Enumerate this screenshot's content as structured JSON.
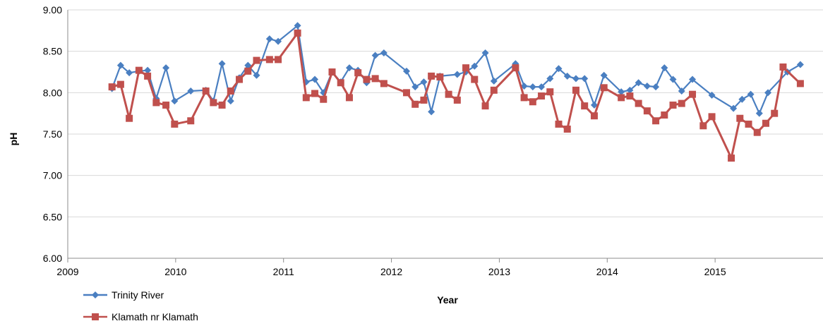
{
  "chart_data": {
    "type": "line",
    "xlabel": "Year",
    "ylabel": "pH",
    "xlim": [
      2009,
      2016
    ],
    "ylim": [
      6.0,
      9.0
    ],
    "x_ticks": [
      "2009",
      "2010",
      "2011",
      "2012",
      "2013",
      "2014",
      "2015"
    ],
    "y_ticks": [
      "6.00",
      "6.50",
      "7.00",
      "7.50",
      "8.00",
      "8.50",
      "9.00"
    ],
    "grid": {
      "horizontal": true,
      "vertical": false
    },
    "legend_position": "bottom-left",
    "series": [
      {
        "name": "Trinity River",
        "color": "#4a7fc1",
        "marker": "diamond",
        "points": [
          [
            2009.41,
            8.05
          ],
          [
            2009.49,
            8.33
          ],
          [
            2009.57,
            8.24
          ],
          [
            2009.66,
            8.26
          ],
          [
            2009.74,
            8.27
          ],
          [
            2009.82,
            7.93
          ],
          [
            2009.91,
            8.3
          ],
          [
            2009.99,
            7.9
          ],
          [
            2010.14,
            8.02
          ],
          [
            2010.28,
            8.03
          ],
          [
            2010.35,
            7.9
          ],
          [
            2010.43,
            8.35
          ],
          [
            2010.51,
            7.9
          ],
          [
            2010.59,
            8.18
          ],
          [
            2010.67,
            8.33
          ],
          [
            2010.75,
            8.21
          ],
          [
            2010.87,
            8.65
          ],
          [
            2010.95,
            8.62
          ],
          [
            2011.13,
            8.81
          ],
          [
            2011.21,
            8.13
          ],
          [
            2011.29,
            8.16
          ],
          [
            2011.37,
            8.0
          ],
          [
            2011.45,
            8.25
          ],
          [
            2011.53,
            8.13
          ],
          [
            2011.61,
            8.3
          ],
          [
            2011.69,
            8.27
          ],
          [
            2011.77,
            8.12
          ],
          [
            2011.85,
            8.45
          ],
          [
            2011.93,
            8.48
          ],
          [
            2012.14,
            8.26
          ],
          [
            2012.22,
            8.07
          ],
          [
            2012.3,
            8.13
          ],
          [
            2012.37,
            7.77
          ],
          [
            2012.45,
            8.2
          ],
          [
            2012.61,
            8.22
          ],
          [
            2012.69,
            8.25
          ],
          [
            2012.77,
            8.32
          ],
          [
            2012.87,
            8.48
          ],
          [
            2012.95,
            8.14
          ],
          [
            2013.15,
            8.35
          ],
          [
            2013.23,
            8.08
          ],
          [
            2013.31,
            8.07
          ],
          [
            2013.39,
            8.07
          ],
          [
            2013.47,
            8.17
          ],
          [
            2013.55,
            8.29
          ],
          [
            2013.63,
            8.2
          ],
          [
            2013.71,
            8.17
          ],
          [
            2013.79,
            8.17
          ],
          [
            2013.88,
            7.85
          ],
          [
            2013.97,
            8.21
          ],
          [
            2014.13,
            8.01
          ],
          [
            2014.21,
            8.03
          ],
          [
            2014.29,
            8.12
          ],
          [
            2014.37,
            8.08
          ],
          [
            2014.45,
            8.07
          ],
          [
            2014.53,
            8.3
          ],
          [
            2014.61,
            8.16
          ],
          [
            2014.69,
            8.02
          ],
          [
            2014.79,
            8.16
          ],
          [
            2014.97,
            7.97
          ],
          [
            2015.17,
            7.81
          ],
          [
            2015.25,
            7.92
          ],
          [
            2015.33,
            7.98
          ],
          [
            2015.41,
            7.75
          ],
          [
            2015.49,
            8.0
          ],
          [
            2015.67,
            8.25
          ],
          [
            2015.79,
            8.34
          ]
        ]
      },
      {
        "name": "Klamath nr Klamath",
        "color": "#c0504d",
        "marker": "square",
        "points": [
          [
            2009.41,
            8.07
          ],
          [
            2009.49,
            8.1
          ],
          [
            2009.57,
            7.69
          ],
          [
            2009.66,
            8.27
          ],
          [
            2009.74,
            8.2
          ],
          [
            2009.82,
            7.88
          ],
          [
            2009.91,
            7.85
          ],
          [
            2009.99,
            7.62
          ],
          [
            2010.14,
            7.66
          ],
          [
            2010.28,
            8.02
          ],
          [
            2010.35,
            7.88
          ],
          [
            2010.43,
            7.85
          ],
          [
            2010.51,
            8.02
          ],
          [
            2010.59,
            8.16
          ],
          [
            2010.67,
            8.26
          ],
          [
            2010.75,
            8.39
          ],
          [
            2010.87,
            8.4
          ],
          [
            2010.95,
            8.4
          ],
          [
            2011.13,
            8.72
          ],
          [
            2011.21,
            7.94
          ],
          [
            2011.29,
            7.99
          ],
          [
            2011.37,
            7.92
          ],
          [
            2011.45,
            8.25
          ],
          [
            2011.53,
            8.12
          ],
          [
            2011.61,
            7.94
          ],
          [
            2011.69,
            8.24
          ],
          [
            2011.77,
            8.16
          ],
          [
            2011.85,
            8.17
          ],
          [
            2011.93,
            8.11
          ],
          [
            2012.14,
            8.0
          ],
          [
            2012.22,
            7.86
          ],
          [
            2012.3,
            7.91
          ],
          [
            2012.37,
            8.2
          ],
          [
            2012.45,
            8.19
          ],
          [
            2012.53,
            7.98
          ],
          [
            2012.61,
            7.91
          ],
          [
            2012.69,
            8.3
          ],
          [
            2012.77,
            8.16
          ],
          [
            2012.87,
            7.84
          ],
          [
            2012.95,
            8.03
          ],
          [
            2013.15,
            8.3
          ],
          [
            2013.23,
            7.94
          ],
          [
            2013.31,
            7.89
          ],
          [
            2013.39,
            7.96
          ],
          [
            2013.47,
            8.01
          ],
          [
            2013.55,
            7.62
          ],
          [
            2013.63,
            7.56
          ],
          [
            2013.71,
            8.03
          ],
          [
            2013.79,
            7.84
          ],
          [
            2013.88,
            7.72
          ],
          [
            2013.97,
            8.06
          ],
          [
            2014.13,
            7.94
          ],
          [
            2014.21,
            7.96
          ],
          [
            2014.29,
            7.87
          ],
          [
            2014.37,
            7.78
          ],
          [
            2014.45,
            7.66
          ],
          [
            2014.53,
            7.73
          ],
          [
            2014.61,
            7.85
          ],
          [
            2014.69,
            7.87
          ],
          [
            2014.79,
            7.98
          ],
          [
            2014.89,
            7.6
          ],
          [
            2014.97,
            7.71
          ],
          [
            2015.15,
            7.21
          ],
          [
            2015.23,
            7.69
          ],
          [
            2015.31,
            7.62
          ],
          [
            2015.39,
            7.52
          ],
          [
            2015.47,
            7.63
          ],
          [
            2015.55,
            7.75
          ],
          [
            2015.63,
            8.31
          ],
          [
            2015.79,
            8.11
          ]
        ]
      }
    ]
  }
}
